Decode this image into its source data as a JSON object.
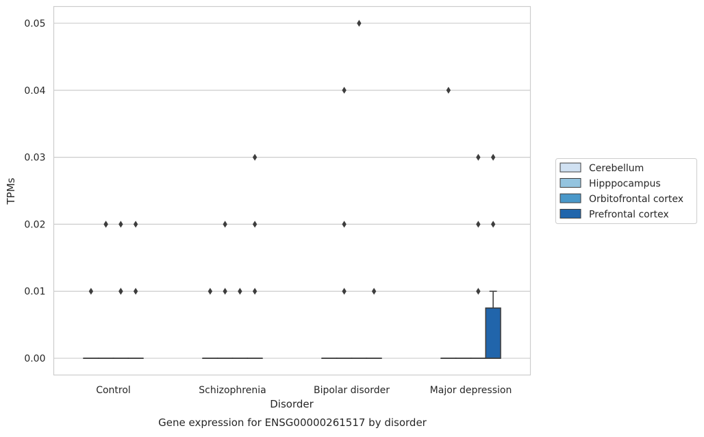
{
  "chart_data": {
    "type": "box",
    "title": "",
    "caption": "Gene expression for ENSG00000261517 by disorder",
    "xlabel": "Disorder",
    "ylabel": "TPMs",
    "ylim": [
      -0.0025,
      0.0525
    ],
    "yticks": [
      "0.00",
      "0.01",
      "0.02",
      "0.03",
      "0.04",
      "0.05"
    ],
    "ytick_values": [
      0,
      0.01,
      0.02,
      0.03,
      0.04,
      0.05
    ],
    "grid": "horizontal",
    "legend_position": "right",
    "categories": [
      "Control",
      "Schizophrenia",
      "Bipolar disorder",
      "Major depression"
    ],
    "series": [
      {
        "name": "Cerebellum",
        "color": "#d0e1f2",
        "boxes": [
          {
            "q1": 0,
            "median": 0,
            "q3": 0,
            "whisker_low": 0,
            "whisker_high": 0,
            "outliers": [
              0.01
            ]
          },
          {
            "q1": 0,
            "median": 0,
            "q3": 0,
            "whisker_low": 0,
            "whisker_high": 0,
            "outliers": [
              0.01
            ]
          },
          {
            "q1": 0,
            "median": 0,
            "q3": 0,
            "whisker_low": 0,
            "whisker_high": 0,
            "outliers": []
          },
          {
            "q1": 0,
            "median": 0,
            "q3": 0,
            "whisker_low": 0,
            "whisker_high": 0,
            "outliers": [
              0.04
            ]
          }
        ]
      },
      {
        "name": "Hipppocampus",
        "color": "#94c4df",
        "boxes": [
          {
            "q1": 0,
            "median": 0,
            "q3": 0,
            "whisker_low": 0,
            "whisker_high": 0,
            "outliers": [
              0.02,
              0.02
            ]
          },
          {
            "q1": 0,
            "median": 0,
            "q3": 0,
            "whisker_low": 0,
            "whisker_high": 0,
            "outliers": [
              0.01,
              0.02
            ]
          },
          {
            "q1": 0,
            "median": 0,
            "q3": 0,
            "whisker_low": 0,
            "whisker_high": 0,
            "outliers": [
              0.01,
              0.02,
              0.04
            ]
          },
          {
            "q1": 0,
            "median": 0,
            "q3": 0,
            "whisker_low": 0,
            "whisker_high": 0,
            "outliers": []
          }
        ]
      },
      {
        "name": "Orbitofrontal cortex",
        "color": "#4a98c9",
        "boxes": [
          {
            "q1": 0,
            "median": 0,
            "q3": 0,
            "whisker_low": 0,
            "whisker_high": 0,
            "outliers": [
              0.01,
              0.01,
              0.02
            ]
          },
          {
            "q1": 0,
            "median": 0,
            "q3": 0,
            "whisker_low": 0,
            "whisker_high": 0,
            "outliers": [
              0.01
            ]
          },
          {
            "q1": 0,
            "median": 0,
            "q3": 0,
            "whisker_low": 0,
            "whisker_high": 0,
            "outliers": [
              0.05
            ]
          },
          {
            "q1": 0,
            "median": 0,
            "q3": 0,
            "whisker_low": 0,
            "whisker_high": 0,
            "outliers": [
              0.01,
              0.02,
              0.03
            ]
          }
        ]
      },
      {
        "name": "Prefrontal cortex",
        "color": "#2165ab",
        "boxes": [
          {
            "q1": 0,
            "median": 0,
            "q3": 0,
            "whisker_low": 0,
            "whisker_high": 0,
            "outliers": [
              0.01,
              0.02
            ]
          },
          {
            "q1": 0,
            "median": 0,
            "q3": 0,
            "whisker_low": 0,
            "whisker_high": 0,
            "outliers": [
              0.01,
              0.02,
              0.03
            ]
          },
          {
            "q1": 0,
            "median": 0,
            "q3": 0,
            "whisker_low": 0,
            "whisker_high": 0,
            "outliers": [
              0.01
            ]
          },
          {
            "q1": 0,
            "median": 0,
            "q3": 0.0075,
            "whisker_low": 0,
            "whisker_high": 0.01,
            "outliers": [
              0.02,
              0.03
            ]
          }
        ]
      }
    ]
  }
}
